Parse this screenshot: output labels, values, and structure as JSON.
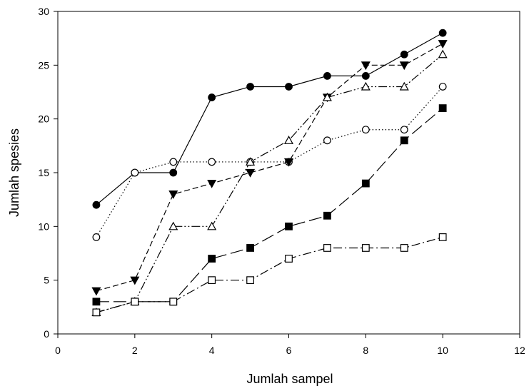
{
  "chart_data": {
    "type": "line",
    "title": "",
    "xlabel": "Jumlah sampel",
    "ylabel": "Jumlah spesies",
    "xlim": [
      0,
      12
    ],
    "ylim": [
      0,
      30
    ],
    "xticks": [
      0,
      2,
      4,
      6,
      8,
      10,
      12
    ],
    "yticks": [
      0,
      5,
      10,
      15,
      20,
      25,
      30
    ],
    "grid": false,
    "legend": "none",
    "x": [
      1,
      2,
      3,
      4,
      5,
      6,
      7,
      8,
      9,
      10
    ],
    "series": [
      {
        "values": [
          12,
          15,
          15,
          22,
          23,
          23,
          24,
          24,
          26,
          28
        ],
        "marker": "filled-circle",
        "line": "solid",
        "color": "#000000"
      },
      {
        "values": [
          9,
          15,
          16,
          16,
          16,
          16,
          18,
          19,
          19,
          23
        ],
        "marker": "open-circle",
        "line": "dotted",
        "color": "#000000"
      },
      {
        "values": [
          4,
          5,
          13,
          14,
          15,
          16,
          22,
          25,
          25,
          27
        ],
        "marker": "filled-triangle-down",
        "line": "short-dash",
        "color": "#000000"
      },
      {
        "values": [
          2,
          3,
          10,
          10,
          16,
          18,
          22,
          23,
          23,
          26
        ],
        "marker": "open-triangle-up",
        "line": "dash-dot-dot",
        "color": "#000000"
      },
      {
        "values": [
          3,
          3,
          3,
          7,
          8,
          10,
          11,
          14,
          18,
          21
        ],
        "marker": "filled-square",
        "line": "long-dash",
        "color": "#000000"
      },
      {
        "values": [
          2,
          3,
          3,
          5,
          5,
          7,
          8,
          8,
          8,
          9
        ],
        "marker": "open-square",
        "line": "dash-dot",
        "color": "#000000"
      }
    ]
  }
}
